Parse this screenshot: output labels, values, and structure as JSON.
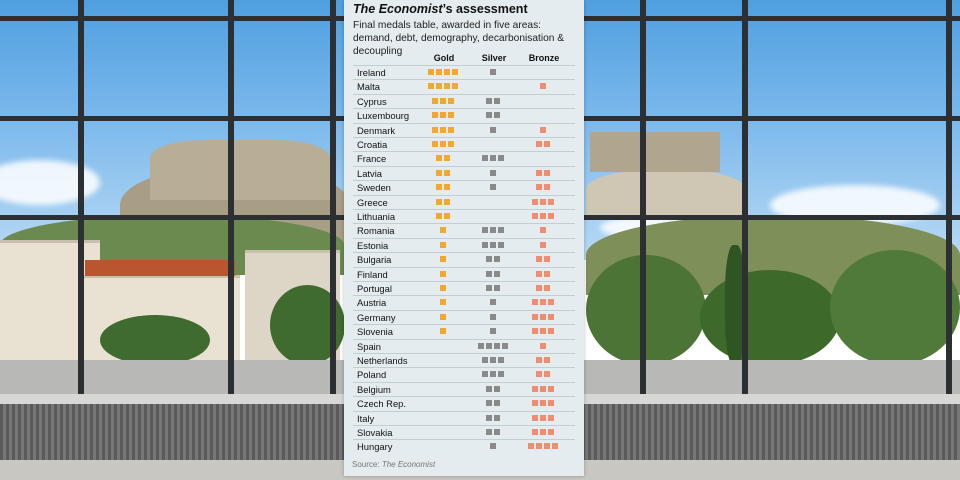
{
  "chart_data": {
    "type": "table",
    "title": "The Economist’s assessment",
    "title_publication": "The Economist",
    "title_suffix": "’s assessment",
    "subtitle": "Final medals table, awarded in five areas: demand, debt, demography, decarbonisation & decoupling",
    "columns": [
      "Gold",
      "Silver",
      "Bronze"
    ],
    "colors": {
      "gold": "#f2a72e",
      "silver": "#8a8a8a",
      "bronze": "#f28c6e"
    },
    "rows": [
      {
        "country": "Ireland",
        "gold": 4,
        "silver": 1,
        "bronze": 0
      },
      {
        "country": "Malta",
        "gold": 4,
        "silver": 0,
        "bronze": 1
      },
      {
        "country": "Cyprus",
        "gold": 3,
        "silver": 2,
        "bronze": 0
      },
      {
        "country": "Luxembourg",
        "gold": 3,
        "silver": 2,
        "bronze": 0
      },
      {
        "country": "Denmark",
        "gold": 3,
        "silver": 1,
        "bronze": 1
      },
      {
        "country": "Croatia",
        "gold": 3,
        "silver": 0,
        "bronze": 2
      },
      {
        "country": "France",
        "gold": 2,
        "silver": 3,
        "bronze": 0
      },
      {
        "country": "Latvia",
        "gold": 2,
        "silver": 1,
        "bronze": 2
      },
      {
        "country": "Sweden",
        "gold": 2,
        "silver": 1,
        "bronze": 2
      },
      {
        "country": "Greece",
        "gold": 2,
        "silver": 0,
        "bronze": 3
      },
      {
        "country": "Lithuania",
        "gold": 2,
        "silver": 0,
        "bronze": 3
      },
      {
        "country": "Romania",
        "gold": 1,
        "silver": 3,
        "bronze": 1
      },
      {
        "country": "Estonia",
        "gold": 1,
        "silver": 3,
        "bronze": 1
      },
      {
        "country": "Bulgaria",
        "gold": 1,
        "silver": 2,
        "bronze": 2
      },
      {
        "country": "Finland",
        "gold": 1,
        "silver": 2,
        "bronze": 2
      },
      {
        "country": "Portugal",
        "gold": 1,
        "silver": 2,
        "bronze": 2
      },
      {
        "country": "Austria",
        "gold": 1,
        "silver": 1,
        "bronze": 3
      },
      {
        "country": "Germany",
        "gold": 1,
        "silver": 1,
        "bronze": 3
      },
      {
        "country": "Slovenia",
        "gold": 1,
        "silver": 1,
        "bronze": 3
      },
      {
        "country": "Spain",
        "gold": 0,
        "silver": 4,
        "bronze": 1
      },
      {
        "country": "Netherlands",
        "gold": 0,
        "silver": 3,
        "bronze": 2
      },
      {
        "country": "Poland",
        "gold": 0,
        "silver": 3,
        "bronze": 2
      },
      {
        "country": "Belgium",
        "gold": 0,
        "silver": 2,
        "bronze": 3
      },
      {
        "country": "Czech Rep.",
        "gold": 0,
        "silver": 2,
        "bronze": 3
      },
      {
        "country": "Italy",
        "gold": 0,
        "silver": 2,
        "bronze": 3
      },
      {
        "country": "Slovakia",
        "gold": 0,
        "silver": 2,
        "bronze": 3
      },
      {
        "country": "Hungary",
        "gold": 0,
        "silver": 1,
        "bronze": 4
      }
    ],
    "source_label": "Source:",
    "source_name": "The Economist"
  }
}
